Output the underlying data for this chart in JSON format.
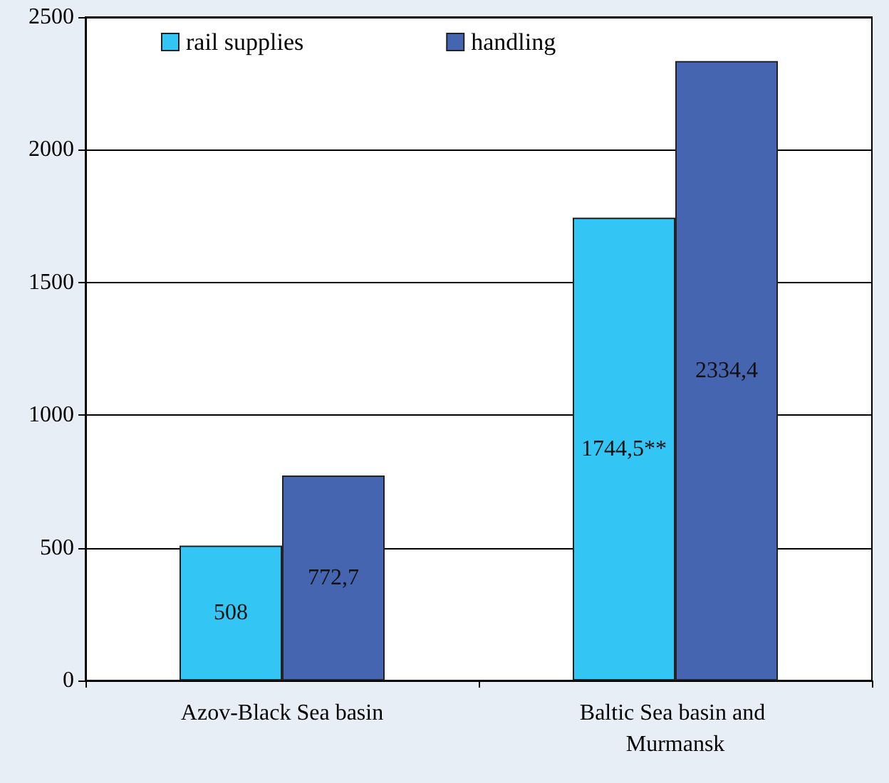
{
  "chart_data": {
    "type": "bar",
    "categories": [
      "Azov-Black Sea basin",
      "Baltic Sea basin and Murmansk"
    ],
    "series": [
      {
        "name": "rail supplies",
        "color": "#33c5f3",
        "values": [
          508,
          1744.5
        ],
        "value_labels": [
          "508",
          "1744,5**"
        ]
      },
      {
        "name": "handling",
        "color": "#4565b0",
        "values": [
          772.7,
          2334.4
        ],
        "value_labels": [
          "772,7",
          "2334,4"
        ]
      }
    ],
    "ylim": [
      0,
      2500
    ],
    "yticks": [
      0,
      500,
      1000,
      1500,
      2000,
      2500
    ],
    "grid": "y",
    "legend": "top left"
  }
}
